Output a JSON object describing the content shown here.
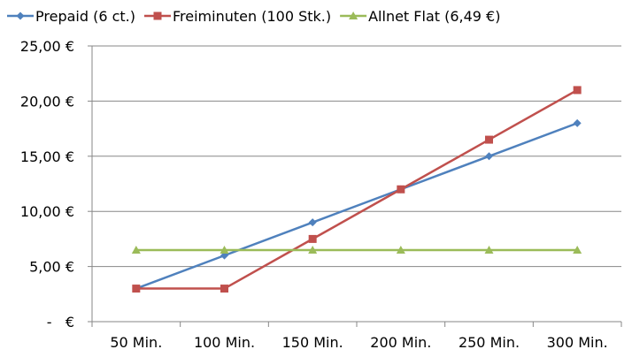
{
  "chart_data": {
    "type": "line",
    "title": "",
    "xlabel": "",
    "ylabel": "",
    "categories": [
      "50 Min.",
      "100 Min.",
      "150 Min.",
      "200 Min.",
      "250 Min.",
      "300 Min."
    ],
    "y_tick_labels": [
      "-   €",
      "5,00 €",
      "10,00 €",
      "15,00 €",
      "20,00 €",
      "25,00 €"
    ],
    "ylim": [
      0,
      25
    ],
    "y_step": 5,
    "grid": "horizontal",
    "legend_position": "top",
    "series": [
      {
        "name": "Prepaid (6 ct.)",
        "values": [
          3.0,
          6.0,
          9.0,
          12.0,
          15.0,
          18.0
        ],
        "color": "#4f81bd",
        "marker": "diamond"
      },
      {
        "name": "Freiminuten (100 Stk.)",
        "values": [
          3.0,
          3.0,
          7.5,
          12.0,
          16.5,
          21.0
        ],
        "color": "#c0504d",
        "marker": "square"
      },
      {
        "name": "Allnet Flat (6,49 €)",
        "values": [
          6.49,
          6.49,
          6.49,
          6.49,
          6.49,
          6.49
        ],
        "color": "#9bbb59",
        "marker": "triangle"
      }
    ],
    "colors": {
      "gridline": "#878787",
      "axis": "#878787"
    }
  }
}
